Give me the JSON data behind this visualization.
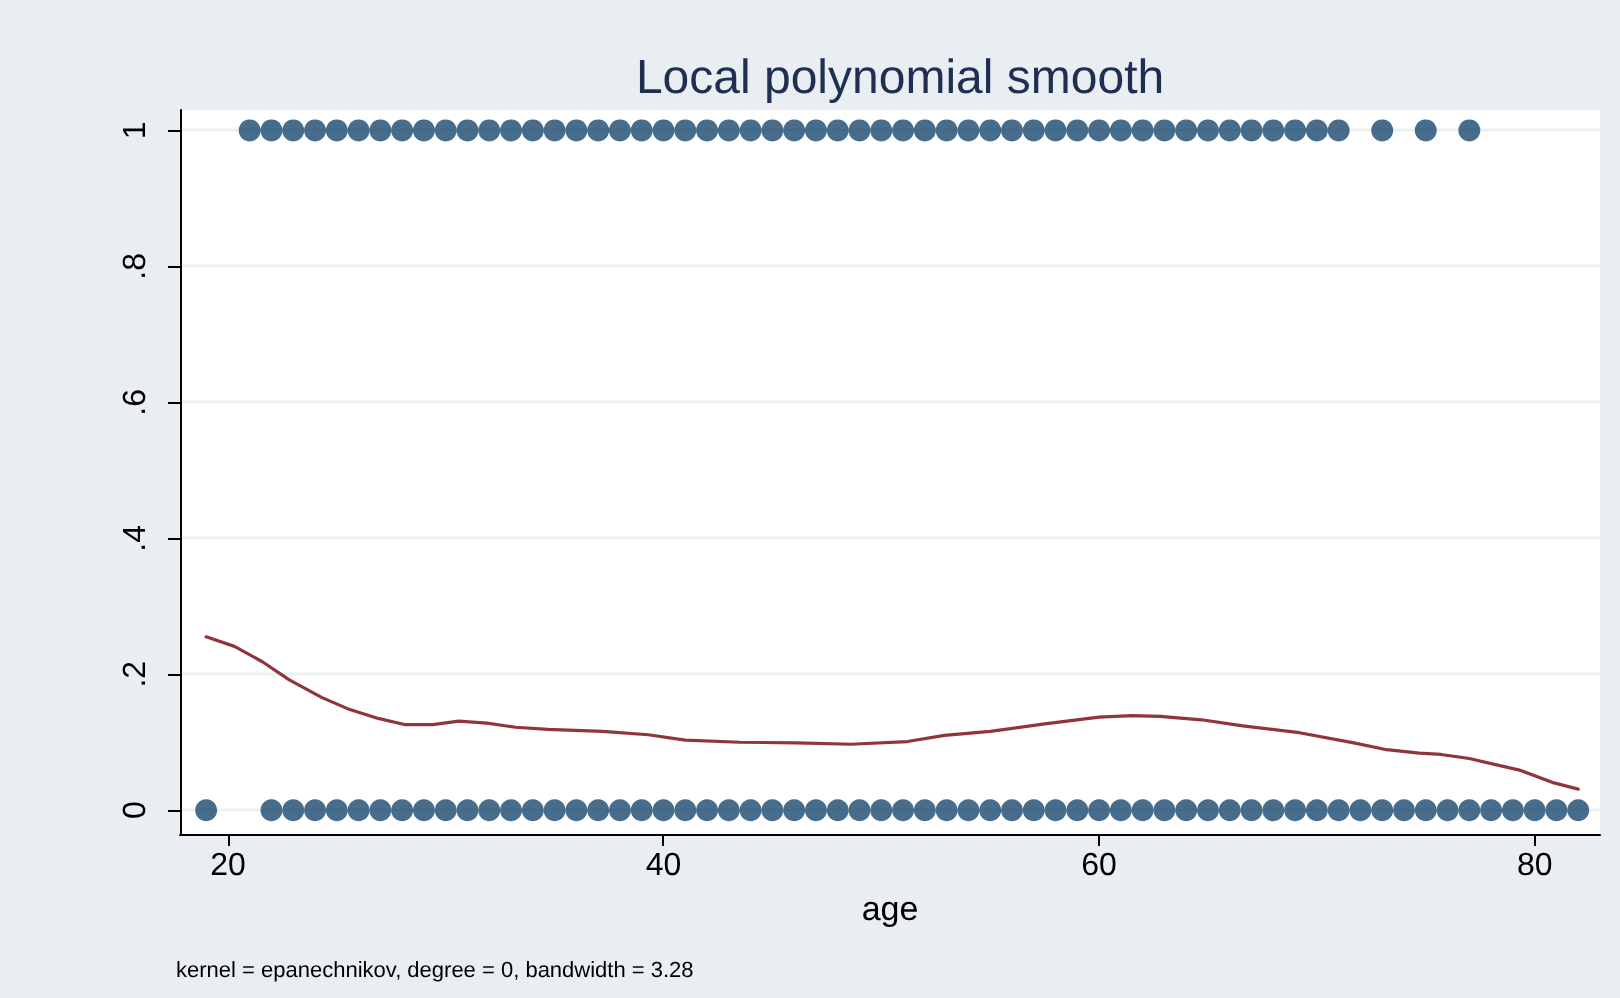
{
  "chart_data": {
    "type": "scatter",
    "title": "Local polynomial smooth",
    "xlabel": "age",
    "annotations": [
      "kernel = epanechnikov, degree = 0, bandwidth = 3.28"
    ],
    "xlim": [
      17.8,
      83
    ],
    "xticks": [
      20,
      40,
      60,
      80
    ],
    "ylim": [
      -0.035,
      1.03
    ],
    "yticks": [
      {
        "value": 0,
        "label": "0"
      },
      {
        "value": 0.2,
        "label": ".2"
      },
      {
        "value": 0.4,
        "label": ".4"
      },
      {
        "value": 0.6,
        "label": ".6"
      },
      {
        "value": 0.8,
        "label": ".8"
      },
      {
        "value": 1,
        "label": "1"
      }
    ],
    "grid": "y",
    "series": [
      {
        "marker": "circle",
        "color": "#1a476f",
        "x": [
          21,
          22,
          23,
          24,
          25,
          26,
          27,
          28,
          29,
          30,
          31,
          32,
          33,
          34,
          35,
          36,
          37,
          38,
          39,
          40,
          41,
          42,
          43,
          44,
          45,
          46,
          47,
          48,
          49,
          50,
          51,
          52,
          53,
          54,
          55,
          56,
          57,
          58,
          59,
          60,
          61,
          62,
          63,
          64,
          65,
          66,
          67,
          68,
          69,
          70,
          71,
          73,
          75,
          77,
          19,
          22,
          23,
          24,
          25,
          26,
          27,
          28,
          29,
          30,
          31,
          32,
          33,
          34,
          35,
          36,
          37,
          38,
          39,
          40,
          41,
          42,
          43,
          44,
          45,
          46,
          47,
          48,
          49,
          50,
          51,
          52,
          53,
          54,
          55,
          56,
          57,
          58,
          59,
          60,
          61,
          62,
          63,
          64,
          65,
          66,
          67,
          68,
          69,
          70,
          71,
          72,
          73,
          74,
          75,
          76,
          77,
          78,
          79,
          80,
          81,
          82
        ],
        "values": [
          1,
          1,
          1,
          1,
          1,
          1,
          1,
          1,
          1,
          1,
          1,
          1,
          1,
          1,
          1,
          1,
          1,
          1,
          1,
          1,
          1,
          1,
          1,
          1,
          1,
          1,
          1,
          1,
          1,
          1,
          1,
          1,
          1,
          1,
          1,
          1,
          1,
          1,
          1,
          1,
          1,
          1,
          1,
          1,
          1,
          1,
          1,
          1,
          1,
          1,
          1,
          1,
          1,
          1,
          0,
          0,
          0,
          0,
          0,
          0,
          0,
          0,
          0,
          0,
          0,
          0,
          0,
          0,
          0,
          0,
          0,
          0,
          0,
          0,
          0,
          0,
          0,
          0,
          0,
          0,
          0,
          0,
          0,
          0,
          0,
          0,
          0,
          0,
          0,
          0,
          0,
          0,
          0,
          0,
          0,
          0,
          0,
          0,
          0,
          0,
          0,
          0,
          0,
          0,
          0,
          0,
          0,
          0,
          0,
          0,
          0,
          0,
          0,
          0,
          0,
          0
        ]
      },
      {
        "type": "line",
        "marker": "none",
        "line_style": "solid",
        "color": "#90353b",
        "x": [
          19.0,
          20.3,
          21.6,
          22.8,
          24.3,
          25.6,
          26.9,
          28.1,
          29.4,
          30.6,
          31.9,
          33.2,
          34.7,
          37.2,
          39.3,
          41.0,
          43.5,
          46.1,
          48.6,
          51.2,
          52.9,
          55.0,
          57.5,
          60.0,
          61.5,
          62.8,
          64.7,
          66.6,
          69.2,
          71.7,
          73.2,
          74.7,
          75.7,
          77.0,
          79.3,
          80.8,
          82.0
        ],
        "values": [
          0.255,
          0.241,
          0.218,
          0.192,
          0.166,
          0.148,
          0.135,
          0.126,
          0.126,
          0.131,
          0.128,
          0.122,
          0.119,
          0.116,
          0.111,
          0.103,
          0.1,
          0.099,
          0.097,
          0.101,
          0.11,
          0.116,
          0.127,
          0.137,
          0.139,
          0.138,
          0.133,
          0.124,
          0.114,
          0.099,
          0.089,
          0.084,
          0.082,
          0.076,
          0.059,
          0.041,
          0.031
        ]
      }
    ]
  }
}
